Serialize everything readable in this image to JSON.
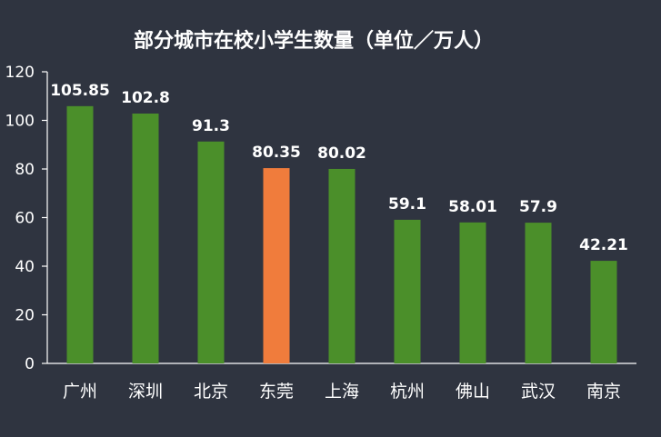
{
  "chart_data": {
    "type": "bar",
    "title": "部分城市在校小学生数量（单位／万人）",
    "xlabel": "",
    "ylabel": "",
    "ylim": [
      0,
      120
    ],
    "yticks": [
      0,
      20,
      40,
      60,
      80,
      100,
      120
    ],
    "grid": false,
    "legend": "none",
    "categories": [
      "广州",
      "深圳",
      "北京",
      "东莞",
      "上海",
      "杭州",
      "佛山",
      "武汉",
      "南京"
    ],
    "values": [
      105.85,
      102.8,
      91.3,
      80.35,
      80.02,
      59.1,
      58.01,
      57.9,
      42.21
    ],
    "data_labels": [
      "105.85",
      "102.8",
      "91.3",
      "80.35",
      "80.02",
      "59.1",
      "58.01",
      "57.9",
      "42.21"
    ],
    "bar_colors": [
      "#4b8f2a",
      "#4b8f2a",
      "#4b8f2a",
      "#f07c3c",
      "#4b8f2a",
      "#4b8f2a",
      "#4b8f2a",
      "#4b8f2a",
      "#4b8f2a"
    ]
  }
}
